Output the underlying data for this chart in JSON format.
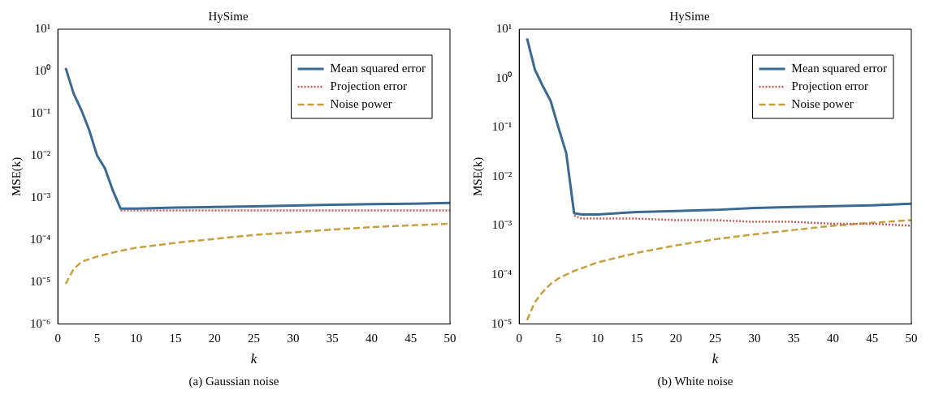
{
  "chart_data": [
    {
      "type": "line",
      "title": "HySime",
      "xlabel": "k",
      "ylabel": "MSE(k)",
      "annotations": [
        "(a) Gaussian noise"
      ],
      "log": "y",
      "grid": false,
      "legend": "top right",
      "xlim": [
        0,
        50
      ],
      "xticks": [
        0,
        5,
        10,
        15,
        20,
        25,
        30,
        35,
        40,
        45,
        50
      ],
      "ylim": [
        1e-06,
        10
      ],
      "yticks": [
        {
          "value": 1e-06,
          "label": "10⁻⁶"
        },
        {
          "value": 1e-05,
          "label": "10⁻⁵"
        },
        {
          "value": 0.0001,
          "label": "10⁻⁴"
        },
        {
          "value": 0.001,
          "label": "10⁻³"
        },
        {
          "value": 0.01,
          "label": "10⁻²"
        },
        {
          "value": 0.1,
          "label": "10⁻¹"
        },
        {
          "value": 1,
          "label": "10⁰"
        },
        {
          "value": 10,
          "label": "10¹"
        }
      ],
      "series": [
        {
          "name": "Mean squared error",
          "color": "#3a6a94",
          "line_style": "solid",
          "x": [
            1,
            2,
            3,
            4,
            5,
            6,
            7,
            8,
            10,
            15,
            20,
            25,
            30,
            35,
            40,
            45,
            50
          ],
          "values": [
            1.2,
            0.3,
            0.12,
            0.04,
            0.01,
            0.005,
            0.0015,
            0.00055,
            0.00055,
            0.00058,
            0.0006,
            0.00062,
            0.00065,
            0.00068,
            0.0007,
            0.00072,
            0.00075
          ]
        },
        {
          "name": "Projection error",
          "color": "#c06060",
          "line_style": "dotted",
          "x": [
            8,
            10,
            15,
            20,
            25,
            30,
            35,
            40,
            45,
            50
          ],
          "values": [
            0.0005,
            0.0005,
            0.0005,
            0.0005,
            0.0005,
            0.0005,
            0.0005,
            0.0005,
            0.0005,
            0.0005
          ]
        },
        {
          "name": "Noise power",
          "color": "#c8a040",
          "line_style": "dashed",
          "x": [
            1,
            2,
            3,
            5,
            8,
            10,
            15,
            20,
            25,
            30,
            35,
            40,
            45,
            50
          ],
          "values": [
            9e-06,
            2e-05,
            3e-05,
            4e-05,
            5.5e-05,
            6.5e-05,
            8.5e-05,
            0.000105,
            0.00013,
            0.00015,
            0.000175,
            0.0002,
            0.00022,
            0.00024
          ]
        }
      ]
    },
    {
      "type": "line",
      "title": "HySime",
      "xlabel": "k",
      "ylabel": "MSE(k)",
      "annotations": [
        "(b) White noise"
      ],
      "log": "y",
      "grid": false,
      "legend": "top right",
      "xlim": [
        0,
        50
      ],
      "xticks": [
        0,
        5,
        10,
        15,
        20,
        25,
        30,
        35,
        40,
        45,
        50
      ],
      "ylim": [
        1e-05,
        10
      ],
      "yticks": [
        {
          "value": 1e-05,
          "label": "10⁻⁵"
        },
        {
          "value": 0.0001,
          "label": "10⁻⁴"
        },
        {
          "value": 0.001,
          "label": "10⁻³"
        },
        {
          "value": 0.01,
          "label": "10⁻²"
        },
        {
          "value": 0.1,
          "label": "10⁻¹"
        },
        {
          "value": 1,
          "label": "10⁰"
        },
        {
          "value": 10,
          "label": "10¹"
        }
      ],
      "series": [
        {
          "name": "Mean squared error",
          "color": "#3a6a94",
          "line_style": "solid",
          "x": [
            1,
            2,
            3,
            4,
            5,
            6,
            7,
            8,
            10,
            15,
            20,
            25,
            30,
            35,
            40,
            45,
            50
          ],
          "values": [
            6.5,
            1.5,
            0.7,
            0.35,
            0.1,
            0.03,
            0.0018,
            0.0017,
            0.0017,
            0.0019,
            0.002,
            0.0021,
            0.0023,
            0.0024,
            0.0025,
            0.0026,
            0.0028
          ]
        },
        {
          "name": "Projection error",
          "color": "#c06060",
          "line_style": "dotted",
          "x": [
            7,
            8,
            10,
            15,
            20,
            25,
            30,
            35,
            40,
            45,
            50
          ],
          "values": [
            0.0016,
            0.0014,
            0.0014,
            0.0014,
            0.0013,
            0.0013,
            0.0012,
            0.0012,
            0.0011,
            0.0011,
            0.001
          ]
        },
        {
          "name": "Noise power",
          "color": "#c8a040",
          "line_style": "dashed",
          "x": [
            1,
            2,
            3,
            4,
            5,
            7,
            10,
            15,
            20,
            25,
            30,
            35,
            40,
            45,
            50
          ],
          "values": [
            1.2e-05,
            2.8e-05,
            4.5e-05,
            6.5e-05,
            8.5e-05,
            0.00012,
            0.00018,
            0.00028,
            0.0004,
            0.00053,
            0.00067,
            0.00082,
            0.001,
            0.00115,
            0.0013
          ]
        }
      ]
    }
  ]
}
